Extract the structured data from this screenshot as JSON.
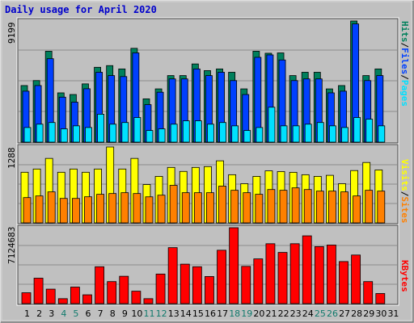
{
  "title": "Daily usage for April 2020",
  "colors": {
    "hits": "#00805c",
    "files": "#0040ff",
    "pages": "#00e0ff",
    "visits": "#ffff00",
    "sites": "#ff8000",
    "kbytes": "#ff0000",
    "weekend_day": "#107a6c",
    "title": "#0000cc",
    "background": "#c0c0c0"
  },
  "chart_data": [
    {
      "type": "bar",
      "panel": "hits-files-pages",
      "categories": [
        "1",
        "2",
        "3",
        "4",
        "5",
        "6",
        "7",
        "8",
        "9",
        "10",
        "11",
        "12",
        "13",
        "14",
        "15",
        "16",
        "17",
        "18",
        "19",
        "20",
        "21",
        "22",
        "23",
        "24",
        "25",
        "26",
        "27",
        "28",
        "29",
        "30",
        "31"
      ],
      "max_label": "9199",
      "ylim": [
        0,
        9199
      ],
      "grid": true,
      "series": [
        {
          "name": "Hits",
          "color_key": "hits",
          "values": [
            4296,
            4675,
            6903,
            3742,
            3616,
            4423,
            5684,
            5811,
            5558,
            7124,
            3287,
            4044,
            5053,
            5053,
            5938,
            5432,
            5558,
            5306,
            4044,
            6903,
            6750,
            6776,
            5053,
            5306,
            5306,
            4043,
            4296,
            9199,
            5053,
            5558,
            null
          ]
        },
        {
          "name": "Files",
          "color_key": "files",
          "values": [
            3869,
            4296,
            6335,
            3416,
            3035,
            4054,
            5306,
            5053,
            4980,
            6776,
            2847,
            3791,
            4801,
            4801,
            5558,
            5053,
            5306,
            4675,
            3616,
            6441,
            6624,
            6240,
            4675,
            4801,
            4801,
            3742,
            3869,
            8978,
            4675,
            5053,
            null
          ]
        },
        {
          "name": "Pages",
          "color_key": "pages",
          "values": [
            1111,
            1364,
            1490,
            1010,
            1237,
            1111,
            2121,
            1364,
            1490,
            1869,
            884,
            1010,
            1364,
            1617,
            1617,
            1364,
            1490,
            1237,
            884,
            1111,
            2652,
            1237,
            1237,
            1364,
            1490,
            1237,
            1111,
            1869,
            1743,
            1237,
            null
          ]
        }
      ]
    },
    {
      "type": "bar",
      "panel": "visits-sites",
      "categories": [
        "1",
        "2",
        "3",
        "4",
        "5",
        "6",
        "7",
        "8",
        "9",
        "10",
        "11",
        "12",
        "13",
        "14",
        "15",
        "16",
        "17",
        "18",
        "19",
        "20",
        "21",
        "22",
        "23",
        "24",
        "25",
        "26",
        "27",
        "28",
        "29",
        "30",
        "31"
      ],
      "max_label": "1288",
      "ylim": [
        0,
        1288
      ],
      "grid": true,
      "series": [
        {
          "name": "Visits",
          "color_key": "visits",
          "values": [
            859,
            914,
            1094,
            859,
            914,
            859,
            914,
            1288,
            914,
            1094,
            650,
            789,
            941,
            873,
            941,
            955,
            1053,
            817,
            665,
            789,
            883,
            871,
            858,
            817,
            789,
            807,
            665,
            888,
            1025,
            898,
            null
          ]
        },
        {
          "name": "Sites",
          "color_key": "sites",
          "values": [
            429,
            457,
            526,
            415,
            415,
            443,
            485,
            498,
            512,
            498,
            442,
            470,
            637,
            512,
            512,
            512,
            624,
            553,
            512,
            485,
            566,
            553,
            594,
            566,
            539,
            539,
            526,
            457,
            553,
            539,
            null
          ]
        }
      ]
    },
    {
      "type": "bar",
      "panel": "kbytes",
      "categories": [
        "1",
        "2",
        "3",
        "4",
        "5",
        "6",
        "7",
        "8",
        "9",
        "10",
        "11",
        "12",
        "13",
        "14",
        "15",
        "16",
        "17",
        "18",
        "19",
        "20",
        "21",
        "22",
        "23",
        "24",
        "25",
        "26",
        "27",
        "28",
        "29",
        "30",
        "31"
      ],
      "max_label": "7124683",
      "ylim": [
        0,
        7124683
      ],
      "grid": true,
      "series": [
        {
          "name": "KBytes",
          "color_key": "kbytes",
          "values": [
            1022000,
            2390000,
            1360000,
            466000,
            1555000,
            829000,
            3462000,
            2070000,
            2568000,
            1167000,
            466000,
            2777000,
            5255000,
            3706000,
            3462000,
            2545000,
            5013000,
            7124683,
            3500000,
            4199000,
            5622000,
            4805000,
            5623000,
            6364000,
            5354000,
            5500000,
            3950000,
            4562000,
            2070000,
            948000,
            null
          ]
        }
      ]
    }
  ],
  "days": [
    {
      "label": "1",
      "weekend": false
    },
    {
      "label": "2",
      "weekend": false
    },
    {
      "label": "3",
      "weekend": false
    },
    {
      "label": "4",
      "weekend": true
    },
    {
      "label": "5",
      "weekend": true
    },
    {
      "label": "6",
      "weekend": false
    },
    {
      "label": "7",
      "weekend": false
    },
    {
      "label": "8",
      "weekend": false
    },
    {
      "label": "9",
      "weekend": false
    },
    {
      "label": "10",
      "weekend": false
    },
    {
      "label": "11",
      "weekend": true
    },
    {
      "label": "12",
      "weekend": true
    },
    {
      "label": "13",
      "weekend": false
    },
    {
      "label": "14",
      "weekend": false
    },
    {
      "label": "15",
      "weekend": false
    },
    {
      "label": "16",
      "weekend": false
    },
    {
      "label": "17",
      "weekend": false
    },
    {
      "label": "18",
      "weekend": true
    },
    {
      "label": "19",
      "weekend": true
    },
    {
      "label": "20",
      "weekend": false
    },
    {
      "label": "21",
      "weekend": false
    },
    {
      "label": "22",
      "weekend": false
    },
    {
      "label": "23",
      "weekend": false
    },
    {
      "label": "24",
      "weekend": false
    },
    {
      "label": "25",
      "weekend": true
    },
    {
      "label": "26",
      "weekend": true
    },
    {
      "label": "27",
      "weekend": false
    },
    {
      "label": "28",
      "weekend": false
    },
    {
      "label": "29",
      "weekend": false
    },
    {
      "label": "30",
      "weekend": false
    },
    {
      "label": "31",
      "weekend": false
    }
  ],
  "legend": {
    "pages": "Pages",
    "files": "Files",
    "hits": "Hits",
    "sites": "Sites",
    "visits": "Visits",
    "kbytes": "KBytes",
    "sep": "/"
  }
}
